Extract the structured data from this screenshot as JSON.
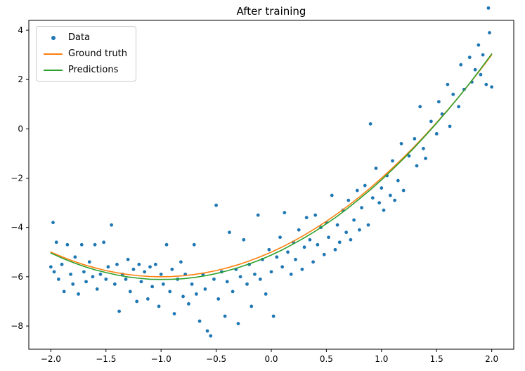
{
  "figure": {
    "background": "#ffffff",
    "frame_color": "#000000",
    "tick_color": "#000000",
    "text_color": "#000000"
  },
  "chart_data": {
    "type": "scatter",
    "title": "After training",
    "xlabel": "",
    "ylabel": "",
    "grid": false,
    "legend_position": "upper left",
    "xlim": [
      -2.2,
      2.2
    ],
    "ylim": [
      -8.94,
      4.4
    ],
    "xticks": [
      -2.0,
      -1.5,
      -1.0,
      -0.5,
      0.0,
      0.5,
      1.0,
      1.5,
      2.0
    ],
    "xtick_labels": [
      "−2.0",
      "−1.5",
      "−1.0",
      "−0.5",
      "0.0",
      "0.5",
      "1.0",
      "1.5",
      "2.0"
    ],
    "yticks": [
      -8,
      -6,
      -4,
      -2,
      0,
      2,
      4
    ],
    "ytick_labels": [
      "−8",
      "−6",
      "−4",
      "−2",
      "0",
      "2",
      "4"
    ],
    "series": [
      {
        "name": "Data",
        "type": "scatter",
        "color": "#1f77b4",
        "marker": "dot",
        "points": [
          [
            -2.0,
            -5.6
          ],
          [
            -1.98,
            -3.8
          ],
          [
            -1.97,
            -5.8
          ],
          [
            -1.95,
            -4.6
          ],
          [
            -1.93,
            -6.1
          ],
          [
            -1.9,
            -5.5
          ],
          [
            -1.88,
            -6.6
          ],
          [
            -1.85,
            -4.7
          ],
          [
            -1.82,
            -5.9
          ],
          [
            -1.8,
            -6.3
          ],
          [
            -1.78,
            -5.2
          ],
          [
            -1.75,
            -6.7
          ],
          [
            -1.72,
            -4.7
          ],
          [
            -1.7,
            -5.8
          ],
          [
            -1.68,
            -6.2
          ],
          [
            -1.65,
            -5.4
          ],
          [
            -1.62,
            -6.0
          ],
          [
            -1.6,
            -4.7
          ],
          [
            -1.58,
            -6.5
          ],
          [
            -1.55,
            -5.9
          ],
          [
            -1.52,
            -4.6
          ],
          [
            -1.5,
            -6.1
          ],
          [
            -1.48,
            -5.6
          ],
          [
            -1.45,
            -3.9
          ],
          [
            -1.42,
            -6.3
          ],
          [
            -1.4,
            -5.5
          ],
          [
            -1.38,
            -7.4
          ],
          [
            -1.35,
            -5.9
          ],
          [
            -1.32,
            -6.1
          ],
          [
            -1.3,
            -5.3
          ],
          [
            -1.28,
            -6.6
          ],
          [
            -1.25,
            -5.7
          ],
          [
            -1.22,
            -7.0
          ],
          [
            -1.2,
            -5.5
          ],
          [
            -1.18,
            -6.2
          ],
          [
            -1.15,
            -5.8
          ],
          [
            -1.12,
            -6.9
          ],
          [
            -1.1,
            -5.6
          ],
          [
            -1.08,
            -6.4
          ],
          [
            -1.05,
            -5.5
          ],
          [
            -1.02,
            -7.2
          ],
          [
            -1.0,
            -5.9
          ],
          [
            -0.98,
            -6.3
          ],
          [
            -0.95,
            -4.7
          ],
          [
            -0.92,
            -6.6
          ],
          [
            -0.9,
            -5.7
          ],
          [
            -0.88,
            -7.5
          ],
          [
            -0.85,
            -6.1
          ],
          [
            -0.82,
            -5.4
          ],
          [
            -0.8,
            -6.8
          ],
          [
            -0.78,
            -5.9
          ],
          [
            -0.75,
            -7.1
          ],
          [
            -0.72,
            -6.3
          ],
          [
            -0.7,
            -4.7
          ],
          [
            -0.68,
            -6.7
          ],
          [
            -0.65,
            -7.8
          ],
          [
            -0.62,
            -5.9
          ],
          [
            -0.6,
            -6.5
          ],
          [
            -0.58,
            -8.2
          ],
          [
            -0.55,
            -8.4
          ],
          [
            -0.52,
            -6.1
          ],
          [
            -0.5,
            -3.1
          ],
          [
            -0.48,
            -6.9
          ],
          [
            -0.45,
            -5.8
          ],
          [
            -0.42,
            -7.6
          ],
          [
            -0.4,
            -6.2
          ],
          [
            -0.38,
            -4.2
          ],
          [
            -0.35,
            -6.6
          ],
          [
            -0.32,
            -5.7
          ],
          [
            -0.3,
            -7.9
          ],
          [
            -0.28,
            -6.0
          ],
          [
            -0.25,
            -4.5
          ],
          [
            -0.22,
            -6.3
          ],
          [
            -0.2,
            -5.5
          ],
          [
            -0.18,
            -7.2
          ],
          [
            -0.15,
            -5.9
          ],
          [
            -0.12,
            -3.5
          ],
          [
            -0.1,
            -6.1
          ],
          [
            -0.08,
            -5.3
          ],
          [
            -0.05,
            -6.7
          ],
          [
            -0.02,
            -4.9
          ],
          [
            0.0,
            -5.8
          ],
          [
            0.02,
            -7.6
          ],
          [
            0.05,
            -5.2
          ],
          [
            0.08,
            -4.4
          ],
          [
            0.1,
            -5.6
          ],
          [
            0.12,
            -3.4
          ],
          [
            0.15,
            -5.0
          ],
          [
            0.18,
            -5.9
          ],
          [
            0.2,
            -4.6
          ],
          [
            0.22,
            -5.3
          ],
          [
            0.25,
            -4.1
          ],
          [
            0.28,
            -5.7
          ],
          [
            0.3,
            -4.8
          ],
          [
            0.32,
            -3.6
          ],
          [
            0.35,
            -4.5
          ],
          [
            0.38,
            -5.4
          ],
          [
            0.4,
            -3.5
          ],
          [
            0.42,
            -4.7
          ],
          [
            0.45,
            -4.0
          ],
          [
            0.48,
            -5.1
          ],
          [
            0.5,
            -3.8
          ],
          [
            0.52,
            -4.4
          ],
          [
            0.55,
            -2.7
          ],
          [
            0.58,
            -4.9
          ],
          [
            0.6,
            -3.9
          ],
          [
            0.62,
            -4.6
          ],
          [
            0.65,
            -3.3
          ],
          [
            0.68,
            -4.2
          ],
          [
            0.7,
            -2.9
          ],
          [
            0.72,
            -4.5
          ],
          [
            0.75,
            -3.7
          ],
          [
            0.78,
            -2.5
          ],
          [
            0.8,
            -4.1
          ],
          [
            0.82,
            -3.2
          ],
          [
            0.85,
            -2.3
          ],
          [
            0.88,
            -3.9
          ],
          [
            0.9,
            0.2
          ],
          [
            0.92,
            -2.8
          ],
          [
            0.95,
            -1.6
          ],
          [
            0.98,
            -3.0
          ],
          [
            1.0,
            -2.4
          ],
          [
            1.02,
            -3.3
          ],
          [
            1.05,
            -1.9
          ],
          [
            1.08,
            -2.7
          ],
          [
            1.1,
            -1.3
          ],
          [
            1.12,
            -2.9
          ],
          [
            1.15,
            -2.1
          ],
          [
            1.18,
            -0.6
          ],
          [
            1.2,
            -2.5
          ],
          [
            1.25,
            -1.1
          ],
          [
            1.3,
            -0.4
          ],
          [
            1.32,
            -1.5
          ],
          [
            1.35,
            0.9
          ],
          [
            1.38,
            -0.8
          ],
          [
            1.4,
            -1.2
          ],
          [
            1.45,
            0.3
          ],
          [
            1.5,
            -0.2
          ],
          [
            1.52,
            1.1
          ],
          [
            1.55,
            0.6
          ],
          [
            1.6,
            1.8
          ],
          [
            1.62,
            0.1
          ],
          [
            1.65,
            1.4
          ],
          [
            1.7,
            0.9
          ],
          [
            1.72,
            2.6
          ],
          [
            1.75,
            1.6
          ],
          [
            1.8,
            2.9
          ],
          [
            1.82,
            1.9
          ],
          [
            1.85,
            2.4
          ],
          [
            1.88,
            3.4
          ],
          [
            1.9,
            2.2
          ],
          [
            1.92,
            3.0
          ],
          [
            1.95,
            1.8
          ],
          [
            1.97,
            4.9
          ],
          [
            1.98,
            3.9
          ],
          [
            2.0,
            1.7
          ]
        ]
      },
      {
        "name": "Ground truth",
        "type": "line",
        "color": "#ff7f0e",
        "x": [
          -2.0,
          -1.9,
          -1.8,
          -1.7,
          -1.6,
          -1.5,
          -1.4,
          -1.3,
          -1.2,
          -1.1,
          -1.0,
          -0.9,
          -0.8,
          -0.7,
          -0.6,
          -0.5,
          -0.4,
          -0.3,
          -0.2,
          -0.1,
          0.0,
          0.1,
          0.2,
          0.3,
          0.4,
          0.5,
          0.6,
          0.7,
          0.8,
          0.9,
          1.0,
          1.1,
          1.2,
          1.3,
          1.4,
          1.5,
          1.6,
          1.7,
          1.8,
          1.9,
          2.0
        ],
        "y": [
          -5.0,
          -5.19,
          -5.36,
          -5.51,
          -5.64,
          -5.75,
          -5.84,
          -5.91,
          -5.96,
          -5.99,
          -6.0,
          -5.99,
          -5.96,
          -5.91,
          -5.84,
          -5.75,
          -5.64,
          -5.51,
          -5.36,
          -5.19,
          -5.0,
          -4.79,
          -4.56,
          -4.31,
          -4.04,
          -3.75,
          -3.44,
          -3.11,
          -2.76,
          -2.39,
          -2.0,
          -1.59,
          -1.16,
          -0.71,
          -0.24,
          0.25,
          0.76,
          1.29,
          1.84,
          2.41,
          3.0
        ]
      },
      {
        "name": "Predictions",
        "type": "line",
        "color": "#2ca02c",
        "x": [
          -2.0,
          -1.9,
          -1.8,
          -1.7,
          -1.6,
          -1.5,
          -1.4,
          -1.3,
          -1.2,
          -1.1,
          -1.0,
          -0.9,
          -0.8,
          -0.7,
          -0.6,
          -0.5,
          -0.4,
          -0.3,
          -0.2,
          -0.1,
          0.0,
          0.1,
          0.2,
          0.3,
          0.4,
          0.5,
          0.6,
          0.7,
          0.8,
          0.9,
          1.0,
          1.1,
          1.2,
          1.3,
          1.4,
          1.5,
          1.6,
          1.7,
          1.8,
          1.9,
          2.0
        ],
        "y": [
          -5.04,
          -5.24,
          -5.42,
          -5.58,
          -5.72,
          -5.83,
          -5.93,
          -6.01,
          -6.06,
          -6.1,
          -6.11,
          -6.1,
          -6.08,
          -6.03,
          -5.96,
          -5.87,
          -5.76,
          -5.63,
          -5.48,
          -5.31,
          -5.12,
          -4.91,
          -4.67,
          -4.42,
          -4.15,
          -3.85,
          -3.54,
          -3.2,
          -2.84,
          -2.47,
          -2.07,
          -1.65,
          -1.21,
          -0.75,
          -0.27,
          0.23,
          0.75,
          1.29,
          1.85,
          2.44,
          3.04
        ]
      }
    ]
  }
}
